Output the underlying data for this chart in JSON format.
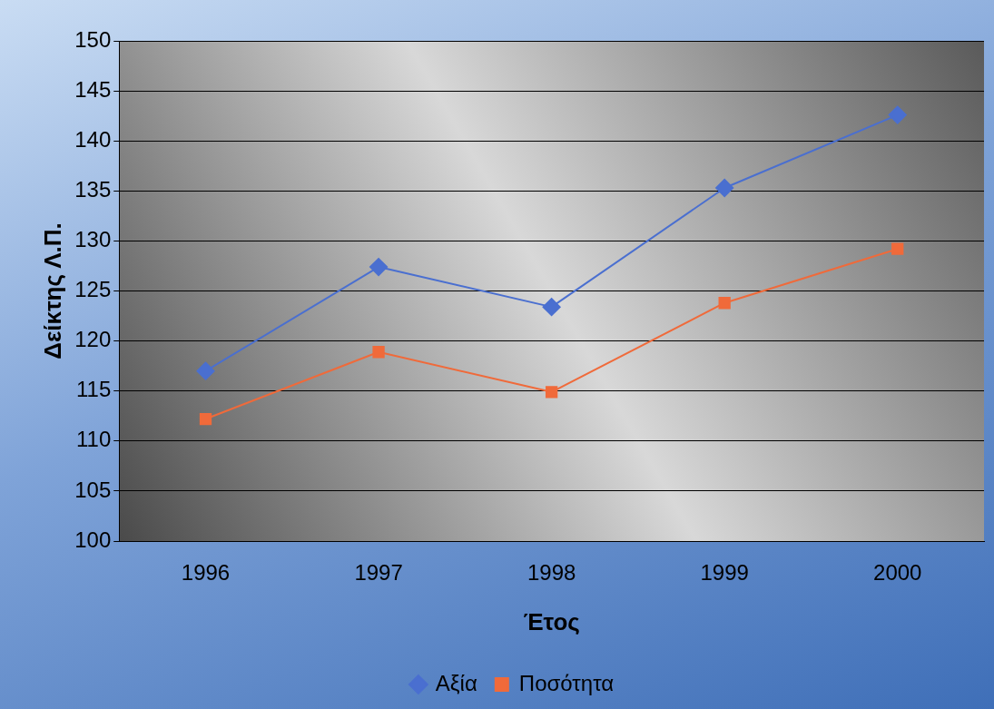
{
  "chart_data": {
    "type": "line",
    "xlabel": "Έτος",
    "ylabel": "Δείκτης Λ.Π.",
    "categories": [
      "1996",
      "1997",
      "1998",
      "1999",
      "2000"
    ],
    "series": [
      {
        "name": "Αξία",
        "color": "#4a6fd0",
        "marker": "diamond",
        "values": [
          117.0,
          127.4,
          123.4,
          135.3,
          142.6
        ]
      },
      {
        "name": "Ποσότητα",
        "color": "#f06a3a",
        "marker": "square",
        "values": [
          112.2,
          118.9,
          114.9,
          123.8,
          129.2
        ]
      }
    ],
    "ylim": [
      100,
      150
    ],
    "yticks": [
      100,
      105,
      110,
      115,
      120,
      125,
      130,
      135,
      140,
      145,
      150
    ],
    "grid": "y",
    "legend": "bottom"
  }
}
